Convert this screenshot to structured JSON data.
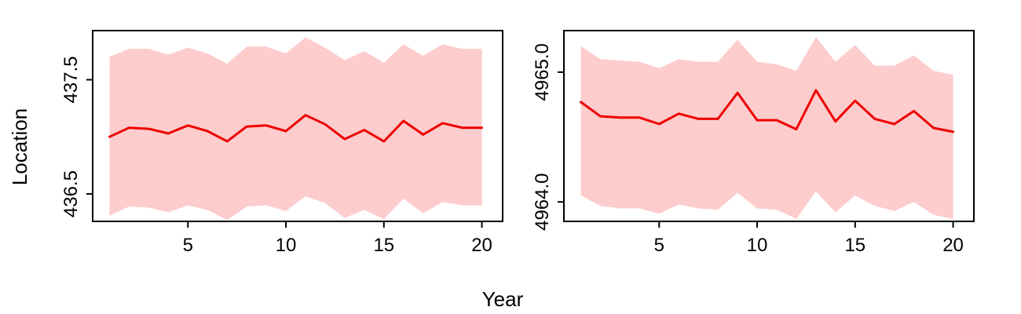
{
  "figure": {
    "xlabel": "Year",
    "ylabel": "Location"
  },
  "colors": {
    "line": "#ee0000",
    "band": "#fdcccc",
    "frame": "#000000"
  },
  "chart_data": [
    {
      "type": "line",
      "title": "",
      "xlabel": "Year",
      "ylabel": "Location",
      "xlim": [
        0.14,
        21.06
      ],
      "ylim": [
        436.26,
        437.93
      ],
      "xticks": [
        5,
        10,
        15,
        20
      ],
      "xtick_labels": [
        "5",
        "10",
        "15",
        "20"
      ],
      "yticks": [
        436.5,
        437.5
      ],
      "ytick_labels": [
        "436.5",
        "437.5"
      ],
      "x": [
        1,
        2,
        3,
        4,
        5,
        6,
        7,
        8,
        9,
        10,
        11,
        12,
        13,
        14,
        15,
        16,
        17,
        18,
        19,
        20
      ],
      "series": [
        {
          "name": "estimate",
          "values": [
            437.0,
            437.08,
            437.07,
            437.03,
            437.1,
            437.05,
            436.96,
            437.09,
            437.1,
            437.05,
            437.19,
            437.11,
            436.98,
            437.06,
            436.96,
            437.14,
            437.02,
            437.12,
            437.08,
            437.08
          ]
        },
        {
          "name": "interval_upper",
          "values": [
            437.7,
            437.77,
            437.77,
            437.72,
            437.78,
            437.73,
            437.64,
            437.79,
            437.79,
            437.73,
            437.87,
            437.78,
            437.67,
            437.75,
            437.65,
            437.81,
            437.71,
            437.81,
            437.77,
            437.77
          ]
        },
        {
          "name": "interval_lower",
          "values": [
            436.31,
            436.39,
            436.38,
            436.34,
            436.4,
            436.36,
            436.27,
            436.39,
            436.4,
            436.35,
            436.48,
            436.42,
            436.29,
            436.36,
            436.28,
            436.46,
            436.33,
            436.43,
            436.4,
            436.4
          ]
        }
      ]
    },
    {
      "type": "line",
      "title": "",
      "xlabel": "Year",
      "ylabel": "",
      "xlim": [
        0.14,
        21.06
      ],
      "ylim": [
        4963.85,
        4965.32
      ],
      "xticks": [
        5,
        10,
        15,
        20
      ],
      "xtick_labels": [
        "5",
        "10",
        "15",
        "20"
      ],
      "yticks": [
        4964.0,
        4965.0
      ],
      "ytick_labels": [
        "4964.0",
        "4965.0"
      ],
      "x": [
        1,
        2,
        3,
        4,
        5,
        6,
        7,
        8,
        9,
        10,
        11,
        12,
        13,
        14,
        15,
        16,
        17,
        18,
        19,
        20
      ],
      "series": [
        {
          "name": "estimate",
          "values": [
            4964.77,
            4964.66,
            4964.65,
            4964.65,
            4964.6,
            4964.68,
            4964.64,
            4964.64,
            4964.84,
            4964.63,
            4964.63,
            4964.56,
            4964.86,
            4964.62,
            4964.78,
            4964.64,
            4964.6,
            4964.7,
            4964.57,
            4964.54
          ]
        },
        {
          "name": "interval_upper",
          "values": [
            4965.2,
            4965.1,
            4965.09,
            4965.08,
            4965.03,
            4965.1,
            4965.08,
            4965.08,
            4965.25,
            4965.08,
            4965.06,
            4965.01,
            4965.27,
            4965.08,
            4965.21,
            4965.05,
            4965.05,
            4965.13,
            4965.01,
            4964.98
          ]
        },
        {
          "name": "interval_lower",
          "values": [
            4964.05,
            4963.97,
            4963.95,
            4963.95,
            4963.91,
            4963.98,
            4963.95,
            4963.94,
            4964.07,
            4963.95,
            4963.94,
            4963.87,
            4964.08,
            4963.92,
            4964.05,
            4963.97,
            4963.93,
            4964.0,
            4963.9,
            4963.87
          ]
        }
      ]
    }
  ]
}
